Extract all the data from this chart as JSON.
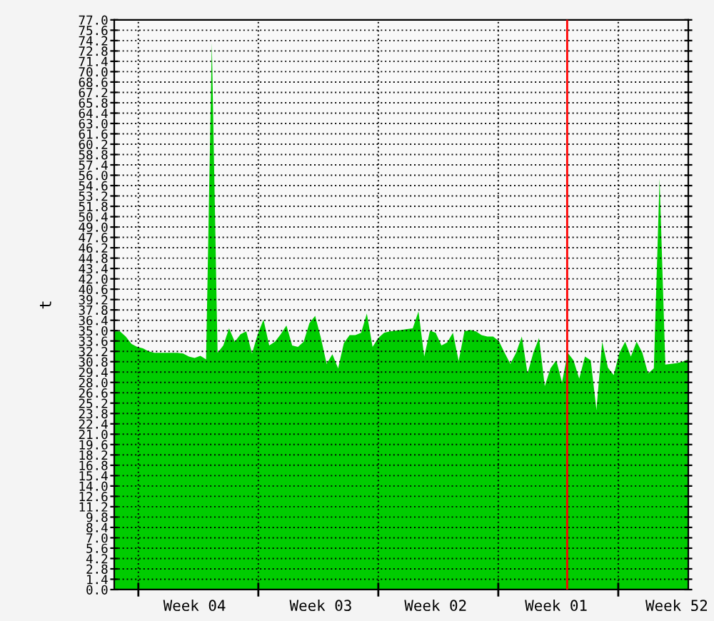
{
  "chart_data": {
    "type": "area",
    "ylabel": "t",
    "categories": [
      null,
      null,
      null,
      null,
      null,
      null,
      null,
      null,
      null,
      null,
      null,
      null,
      null,
      null,
      "Week 04",
      null,
      null,
      null,
      null,
      null,
      null,
      null,
      null,
      null,
      null,
      null,
      null,
      null,
      null,
      null,
      null,
      null,
      null,
      null,
      null,
      null,
      "Week 03",
      null,
      null,
      null,
      null,
      null,
      null,
      null,
      null,
      null,
      null,
      null,
      null,
      null,
      null,
      null,
      null,
      null,
      null,
      null,
      "Week 02",
      null,
      null,
      null,
      null,
      null,
      null,
      null,
      null,
      null,
      null,
      null,
      null,
      null,
      null,
      null,
      null,
      null,
      null,
      null,
      null,
      "Week 01",
      null,
      null,
      null,
      null,
      null,
      null,
      null,
      null,
      null,
      null,
      null,
      null,
      null,
      null,
      null,
      null,
      null,
      null,
      null,
      null,
      "Week 52",
      null,
      null
    ],
    "series": [
      {
        "color": "#00cc00",
        "values": [
          34.9,
          34.9,
          34.2,
          33.2,
          32.8,
          32.6,
          32.2,
          32.0,
          32.0,
          32.0,
          32.0,
          32.0,
          31.9,
          31.5,
          31.3,
          31.6,
          31.1,
          73.9,
          32.0,
          33.0,
          35.3,
          33.5,
          34.5,
          34.9,
          31.9,
          34.5,
          36.5,
          33.0,
          33.5,
          34.5,
          35.7,
          33.0,
          32.8,
          33.5,
          36.0,
          37.0,
          34.0,
          30.5,
          31.8,
          29.9,
          33.3,
          34.4,
          34.4,
          34.7,
          37.3,
          32.8,
          34.0,
          34.7,
          34.9,
          35.0,
          35.1,
          35.2,
          35.3,
          37.6,
          31.5,
          35.0,
          34.7,
          33.0,
          33.4,
          34.7,
          30.9,
          34.9,
          35.1,
          34.9,
          34.4,
          34.2,
          34.2,
          33.6,
          32.0,
          30.5,
          32.0,
          34.2,
          29.2,
          32.0,
          34.0,
          27.5,
          29.9,
          31.0,
          28.0,
          32.0,
          31.0,
          28.5,
          31.5,
          31.0,
          24.3,
          33.5,
          30.0,
          29.0,
          32.0,
          33.5,
          31.5,
          33.5,
          32.0,
          29.2,
          29.9,
          55.6,
          30.4,
          30.5,
          30.6,
          30.8,
          31.1
        ]
      }
    ],
    "ylim": [
      0,
      77
    ],
    "yticks": [
      {
        "value": 0,
        "label": "0.0"
      },
      1.4,
      2.8,
      4.2,
      5.6,
      {
        "value": 7,
        "label": "7.0"
      },
      8.4,
      9.8,
      11.2,
      12.6,
      {
        "value": 14,
        "label": "14.0"
      },
      15.4,
      16.8,
      18.2,
      19.6,
      {
        "value": 21,
        "label": "21.0"
      },
      22.4,
      23.8,
      25.2,
      26.6,
      {
        "value": 28,
        "label": "28.0"
      },
      29.4,
      30.8,
      32.2,
      33.6,
      {
        "value": 35,
        "label": "35.0"
      },
      36.4,
      37.8,
      39.2,
      40.6,
      {
        "value": 42,
        "label": "42.0"
      },
      43.4,
      44.8,
      46.2,
      47.6,
      {
        "value": 49,
        "label": "49.0"
      },
      50.4,
      51.8,
      53.2,
      54.6,
      {
        "value": 56,
        "label": "56.0"
      },
      57.4,
      58.8,
      60.2,
      61.6,
      {
        "value": 63,
        "label": "63.0"
      },
      64.4,
      65.8,
      67.2,
      68.6,
      {
        "value": 70,
        "label": "70.0"
      },
      71.4,
      72.8,
      74.2,
      75.6,
      {
        "value": 77,
        "label": "77.0"
      }
    ],
    "grid": "y"
  }
}
